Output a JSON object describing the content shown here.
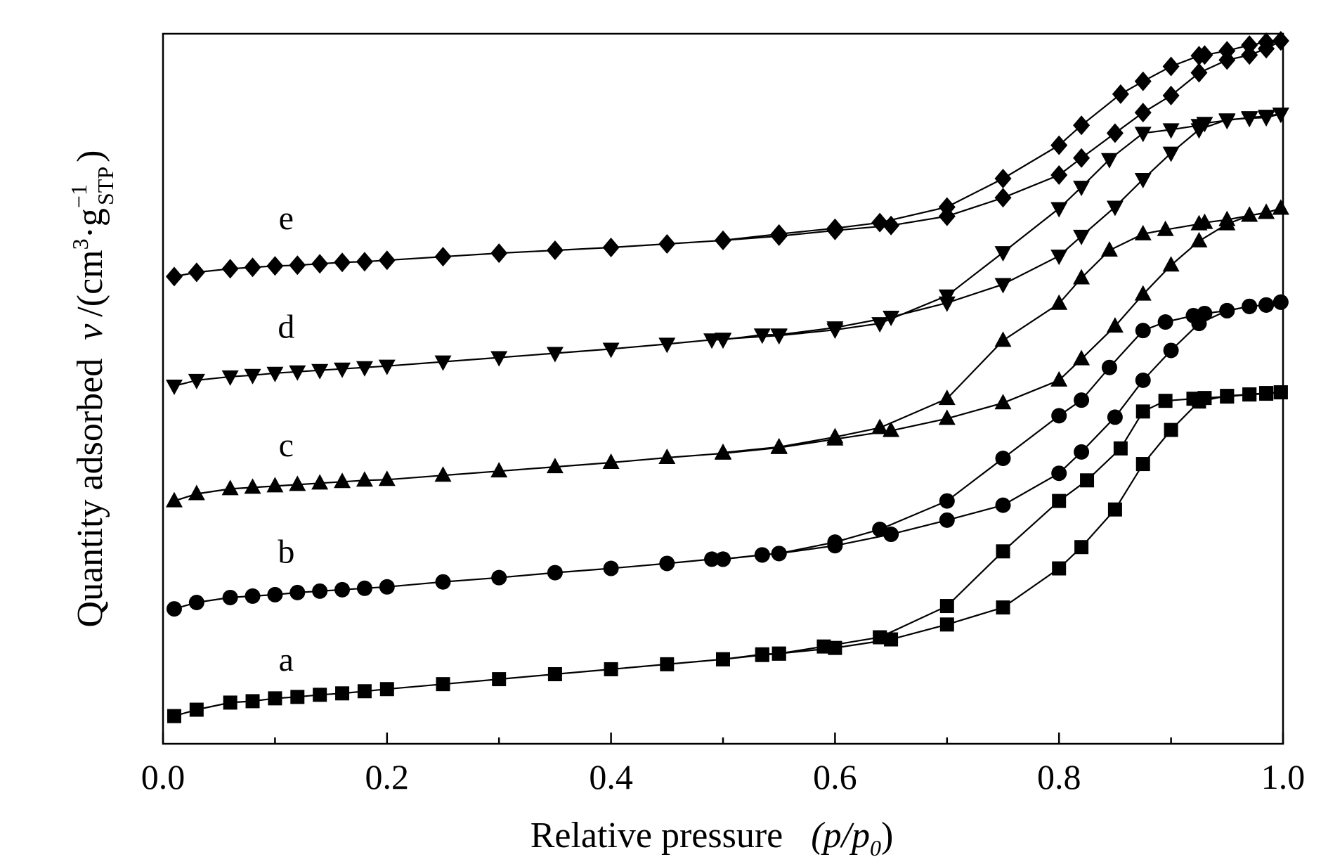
{
  "chart_data": {
    "type": "line",
    "title": "",
    "xlabel": {
      "main": "Relative pressure",
      "paren": "(p/p",
      "sub": "0",
      "close": ")"
    },
    "ylabel": {
      "main": "Quantity adsorbed",
      "var": "v",
      "unit_open": "/(cm",
      "unit_sup3": "3",
      "unit_mid": "·g",
      "unit_supm1": "−1",
      "unit_sub": "STP",
      "unit_close": ")"
    },
    "xlim": [
      0.0,
      1.0
    ],
    "ylim": [
      0,
      100
    ],
    "x_ticks": [
      "0.0",
      "0.2",
      "0.4",
      "0.6",
      "0.8",
      "1.0"
    ],
    "x_tick_values": [
      0.0,
      0.2,
      0.4,
      0.6,
      0.8,
      1.0
    ],
    "x_minor_ticks": [
      0.1,
      0.3,
      0.5,
      0.7,
      0.9
    ],
    "y_ticks": [],
    "series": [
      {
        "name": "a",
        "marker": "square",
        "label_at": [
          0.11,
          10.3
        ],
        "adsorption": [
          [
            0.01,
            3.9
          ],
          [
            0.03,
            4.8
          ],
          [
            0.06,
            5.8
          ],
          [
            0.08,
            6.0
          ],
          [
            0.1,
            6.4
          ],
          [
            0.12,
            6.6
          ],
          [
            0.14,
            6.9
          ],
          [
            0.16,
            7.1
          ],
          [
            0.18,
            7.4
          ],
          [
            0.2,
            7.7
          ],
          [
            0.25,
            8.4
          ],
          [
            0.3,
            9.1
          ],
          [
            0.35,
            9.8
          ],
          [
            0.4,
            10.5
          ],
          [
            0.45,
            11.2
          ],
          [
            0.5,
            11.9
          ],
          [
            0.535,
            12.6
          ],
          [
            0.55,
            12.7
          ],
          [
            0.6,
            13.5
          ],
          [
            0.65,
            14.7
          ],
          [
            0.7,
            16.8
          ],
          [
            0.75,
            19.2
          ],
          [
            0.8,
            24.7
          ],
          [
            0.82,
            27.7
          ],
          [
            0.85,
            33.0
          ],
          [
            0.875,
            39.4
          ],
          [
            0.9,
            44.2
          ],
          [
            0.925,
            48.2
          ],
          [
            0.95,
            49.0
          ],
          [
            0.97,
            49.2
          ],
          [
            0.985,
            49.3
          ],
          [
            0.998,
            49.5
          ]
        ],
        "desorption": [
          [
            0.998,
            49.5
          ],
          [
            0.985,
            49.4
          ],
          [
            0.97,
            49.2
          ],
          [
            0.95,
            48.9
          ],
          [
            0.93,
            48.7
          ],
          [
            0.92,
            48.6
          ],
          [
            0.895,
            48.3
          ],
          [
            0.875,
            46.8
          ],
          [
            0.855,
            41.6
          ],
          [
            0.825,
            37.1
          ],
          [
            0.8,
            34.2
          ],
          [
            0.75,
            27.1
          ],
          [
            0.7,
            19.4
          ],
          [
            0.64,
            15.0
          ],
          [
            0.59,
            13.7
          ],
          [
            0.55,
            12.7
          ],
          [
            0.535,
            12.5
          ],
          [
            0.5,
            11.9
          ]
        ]
      },
      {
        "name": "b",
        "marker": "circle",
        "label_at": [
          0.11,
          25.5
        ],
        "adsorption": [
          [
            0.01,
            19.0
          ],
          [
            0.03,
            19.9
          ],
          [
            0.06,
            20.6
          ],
          [
            0.08,
            20.8
          ],
          [
            0.1,
            21.0
          ],
          [
            0.12,
            21.3
          ],
          [
            0.14,
            21.5
          ],
          [
            0.16,
            21.7
          ],
          [
            0.18,
            21.9
          ],
          [
            0.2,
            22.1
          ],
          [
            0.25,
            22.8
          ],
          [
            0.3,
            23.4
          ],
          [
            0.35,
            24.1
          ],
          [
            0.4,
            24.7
          ],
          [
            0.45,
            25.4
          ],
          [
            0.49,
            26.0
          ],
          [
            0.5,
            26.0
          ],
          [
            0.535,
            26.6
          ],
          [
            0.55,
            26.8
          ],
          [
            0.6,
            27.9
          ],
          [
            0.65,
            29.5
          ],
          [
            0.7,
            31.5
          ],
          [
            0.75,
            33.6
          ],
          [
            0.8,
            38.1
          ],
          [
            0.82,
            41.1
          ],
          [
            0.85,
            46.0
          ],
          [
            0.875,
            51.2
          ],
          [
            0.9,
            55.4
          ],
          [
            0.925,
            59.2
          ],
          [
            0.95,
            61.0
          ],
          [
            0.97,
            61.6
          ],
          [
            0.985,
            61.8
          ],
          [
            0.998,
            62.2
          ]
        ],
        "desorption": [
          [
            0.998,
            62.2
          ],
          [
            0.985,
            61.8
          ],
          [
            0.97,
            61.6
          ],
          [
            0.95,
            61.0
          ],
          [
            0.93,
            60.6
          ],
          [
            0.92,
            60.3
          ],
          [
            0.895,
            59.4
          ],
          [
            0.875,
            58.2
          ],
          [
            0.845,
            53.0
          ],
          [
            0.82,
            48.4
          ],
          [
            0.8,
            46.2
          ],
          [
            0.75,
            40.2
          ],
          [
            0.7,
            34.2
          ],
          [
            0.64,
            30.2
          ],
          [
            0.6,
            28.4
          ],
          [
            0.55,
            26.8
          ],
          [
            0.535,
            26.6
          ],
          [
            0.5,
            26.0
          ]
        ]
      },
      {
        "name": "c",
        "marker": "triangle-up",
        "label_at": [
          0.11,
          40.5
        ],
        "adsorption": [
          [
            0.01,
            34.2
          ],
          [
            0.03,
            35.2
          ],
          [
            0.06,
            35.9
          ],
          [
            0.08,
            36.1
          ],
          [
            0.1,
            36.3
          ],
          [
            0.12,
            36.5
          ],
          [
            0.14,
            36.7
          ],
          [
            0.16,
            36.9
          ],
          [
            0.18,
            37.1
          ],
          [
            0.2,
            37.2
          ],
          [
            0.25,
            37.8
          ],
          [
            0.3,
            38.4
          ],
          [
            0.35,
            39.0
          ],
          [
            0.4,
            39.6
          ],
          [
            0.45,
            40.3
          ],
          [
            0.5,
            40.9
          ],
          [
            0.55,
            41.7
          ],
          [
            0.6,
            42.9
          ],
          [
            0.65,
            44.1
          ],
          [
            0.7,
            45.8
          ],
          [
            0.75,
            48.0
          ],
          [
            0.8,
            51.2
          ],
          [
            0.82,
            54.2
          ],
          [
            0.85,
            58.8
          ],
          [
            0.875,
            63.3
          ],
          [
            0.9,
            67.4
          ],
          [
            0.925,
            70.8
          ],
          [
            0.95,
            73.2
          ],
          [
            0.97,
            74.4
          ],
          [
            0.985,
            74.8
          ],
          [
            0.998,
            75.4
          ]
        ],
        "desorption": [
          [
            0.998,
            75.4
          ],
          [
            0.985,
            74.8
          ],
          [
            0.97,
            74.4
          ],
          [
            0.95,
            73.8
          ],
          [
            0.93,
            73.4
          ],
          [
            0.925,
            73.2
          ],
          [
            0.895,
            72.4
          ],
          [
            0.875,
            71.8
          ],
          [
            0.845,
            69.5
          ],
          [
            0.82,
            65.6
          ],
          [
            0.8,
            62.0
          ],
          [
            0.75,
            56.8
          ],
          [
            0.7,
            48.6
          ],
          [
            0.64,
            44.5
          ],
          [
            0.6,
            43.2
          ],
          [
            0.55,
            41.8
          ],
          [
            0.5,
            41.0
          ]
        ]
      },
      {
        "name": "d",
        "marker": "triangle-down",
        "label_at": [
          0.11,
          57.2
        ],
        "adsorption": [
          [
            0.01,
            50.4
          ],
          [
            0.03,
            51.2
          ],
          [
            0.06,
            51.7
          ],
          [
            0.08,
            51.9
          ],
          [
            0.1,
            52.2
          ],
          [
            0.12,
            52.4
          ],
          [
            0.14,
            52.6
          ],
          [
            0.16,
            52.8
          ],
          [
            0.18,
            53.0
          ],
          [
            0.2,
            53.2
          ],
          [
            0.25,
            53.8
          ],
          [
            0.3,
            54.4
          ],
          [
            0.35,
            55.0
          ],
          [
            0.4,
            55.6
          ],
          [
            0.45,
            56.3
          ],
          [
            0.49,
            56.9
          ],
          [
            0.5,
            56.9
          ],
          [
            0.535,
            57.6
          ],
          [
            0.55,
            57.6
          ],
          [
            0.6,
            58.6
          ],
          [
            0.65,
            60.1
          ],
          [
            0.7,
            62.1
          ],
          [
            0.75,
            64.7
          ],
          [
            0.8,
            68.7
          ],
          [
            0.82,
            71.5
          ],
          [
            0.85,
            75.6
          ],
          [
            0.875,
            79.5
          ],
          [
            0.9,
            83.2
          ],
          [
            0.925,
            86.5
          ],
          [
            0.95,
            87.9
          ],
          [
            0.97,
            88.1
          ],
          [
            0.985,
            88.2
          ],
          [
            0.998,
            88.7
          ]
        ],
        "desorption": [
          [
            0.998,
            88.7
          ],
          [
            0.985,
            88.4
          ],
          [
            0.97,
            88.2
          ],
          [
            0.95,
            87.8
          ],
          [
            0.93,
            87.4
          ],
          [
            0.925,
            87.1
          ],
          [
            0.9,
            86.5
          ],
          [
            0.875,
            86.0
          ],
          [
            0.845,
            82.3
          ],
          [
            0.82,
            78.4
          ],
          [
            0.8,
            75.4
          ],
          [
            0.75,
            69.2
          ],
          [
            0.7,
            63.1
          ],
          [
            0.64,
            59.2
          ],
          [
            0.6,
            58.3
          ],
          [
            0.55,
            57.5
          ],
          [
            0.5,
            57.0
          ]
        ]
      },
      {
        "name": "e",
        "marker": "diamond",
        "label_at": [
          0.11,
          72.5
        ],
        "adsorption": [
          [
            0.01,
            65.8
          ],
          [
            0.03,
            66.4
          ],
          [
            0.06,
            66.9
          ],
          [
            0.08,
            67.1
          ],
          [
            0.1,
            67.3
          ],
          [
            0.12,
            67.4
          ],
          [
            0.14,
            67.6
          ],
          [
            0.16,
            67.8
          ],
          [
            0.18,
            67.9
          ],
          [
            0.2,
            68.1
          ],
          [
            0.25,
            68.6
          ],
          [
            0.3,
            69.1
          ],
          [
            0.35,
            69.5
          ],
          [
            0.4,
            69.9
          ],
          [
            0.45,
            70.4
          ],
          [
            0.5,
            70.9
          ],
          [
            0.55,
            71.5
          ],
          [
            0.6,
            72.3
          ],
          [
            0.65,
            73.0
          ],
          [
            0.7,
            74.3
          ],
          [
            0.75,
            76.9
          ],
          [
            0.8,
            80.1
          ],
          [
            0.82,
            82.5
          ],
          [
            0.85,
            86.0
          ],
          [
            0.875,
            88.9
          ],
          [
            0.9,
            91.3
          ],
          [
            0.925,
            94.5
          ],
          [
            0.95,
            96.3
          ],
          [
            0.97,
            97.0
          ],
          [
            0.985,
            97.9
          ],
          [
            0.998,
            99.0
          ]
        ],
        "desorption": [
          [
            0.998,
            99.0
          ],
          [
            0.985,
            98.8
          ],
          [
            0.97,
            98.4
          ],
          [
            0.95,
            97.6
          ],
          [
            0.93,
            97.0
          ],
          [
            0.925,
            96.9
          ],
          [
            0.9,
            95.4
          ],
          [
            0.875,
            93.3
          ],
          [
            0.855,
            91.5
          ],
          [
            0.82,
            87.1
          ],
          [
            0.8,
            84.3
          ],
          [
            0.75,
            79.6
          ],
          [
            0.7,
            75.6
          ],
          [
            0.64,
            73.4
          ],
          [
            0.6,
            72.6
          ],
          [
            0.55,
            71.8
          ],
          [
            0.5,
            70.9
          ]
        ]
      }
    ],
    "grid": false,
    "legend": "none"
  }
}
